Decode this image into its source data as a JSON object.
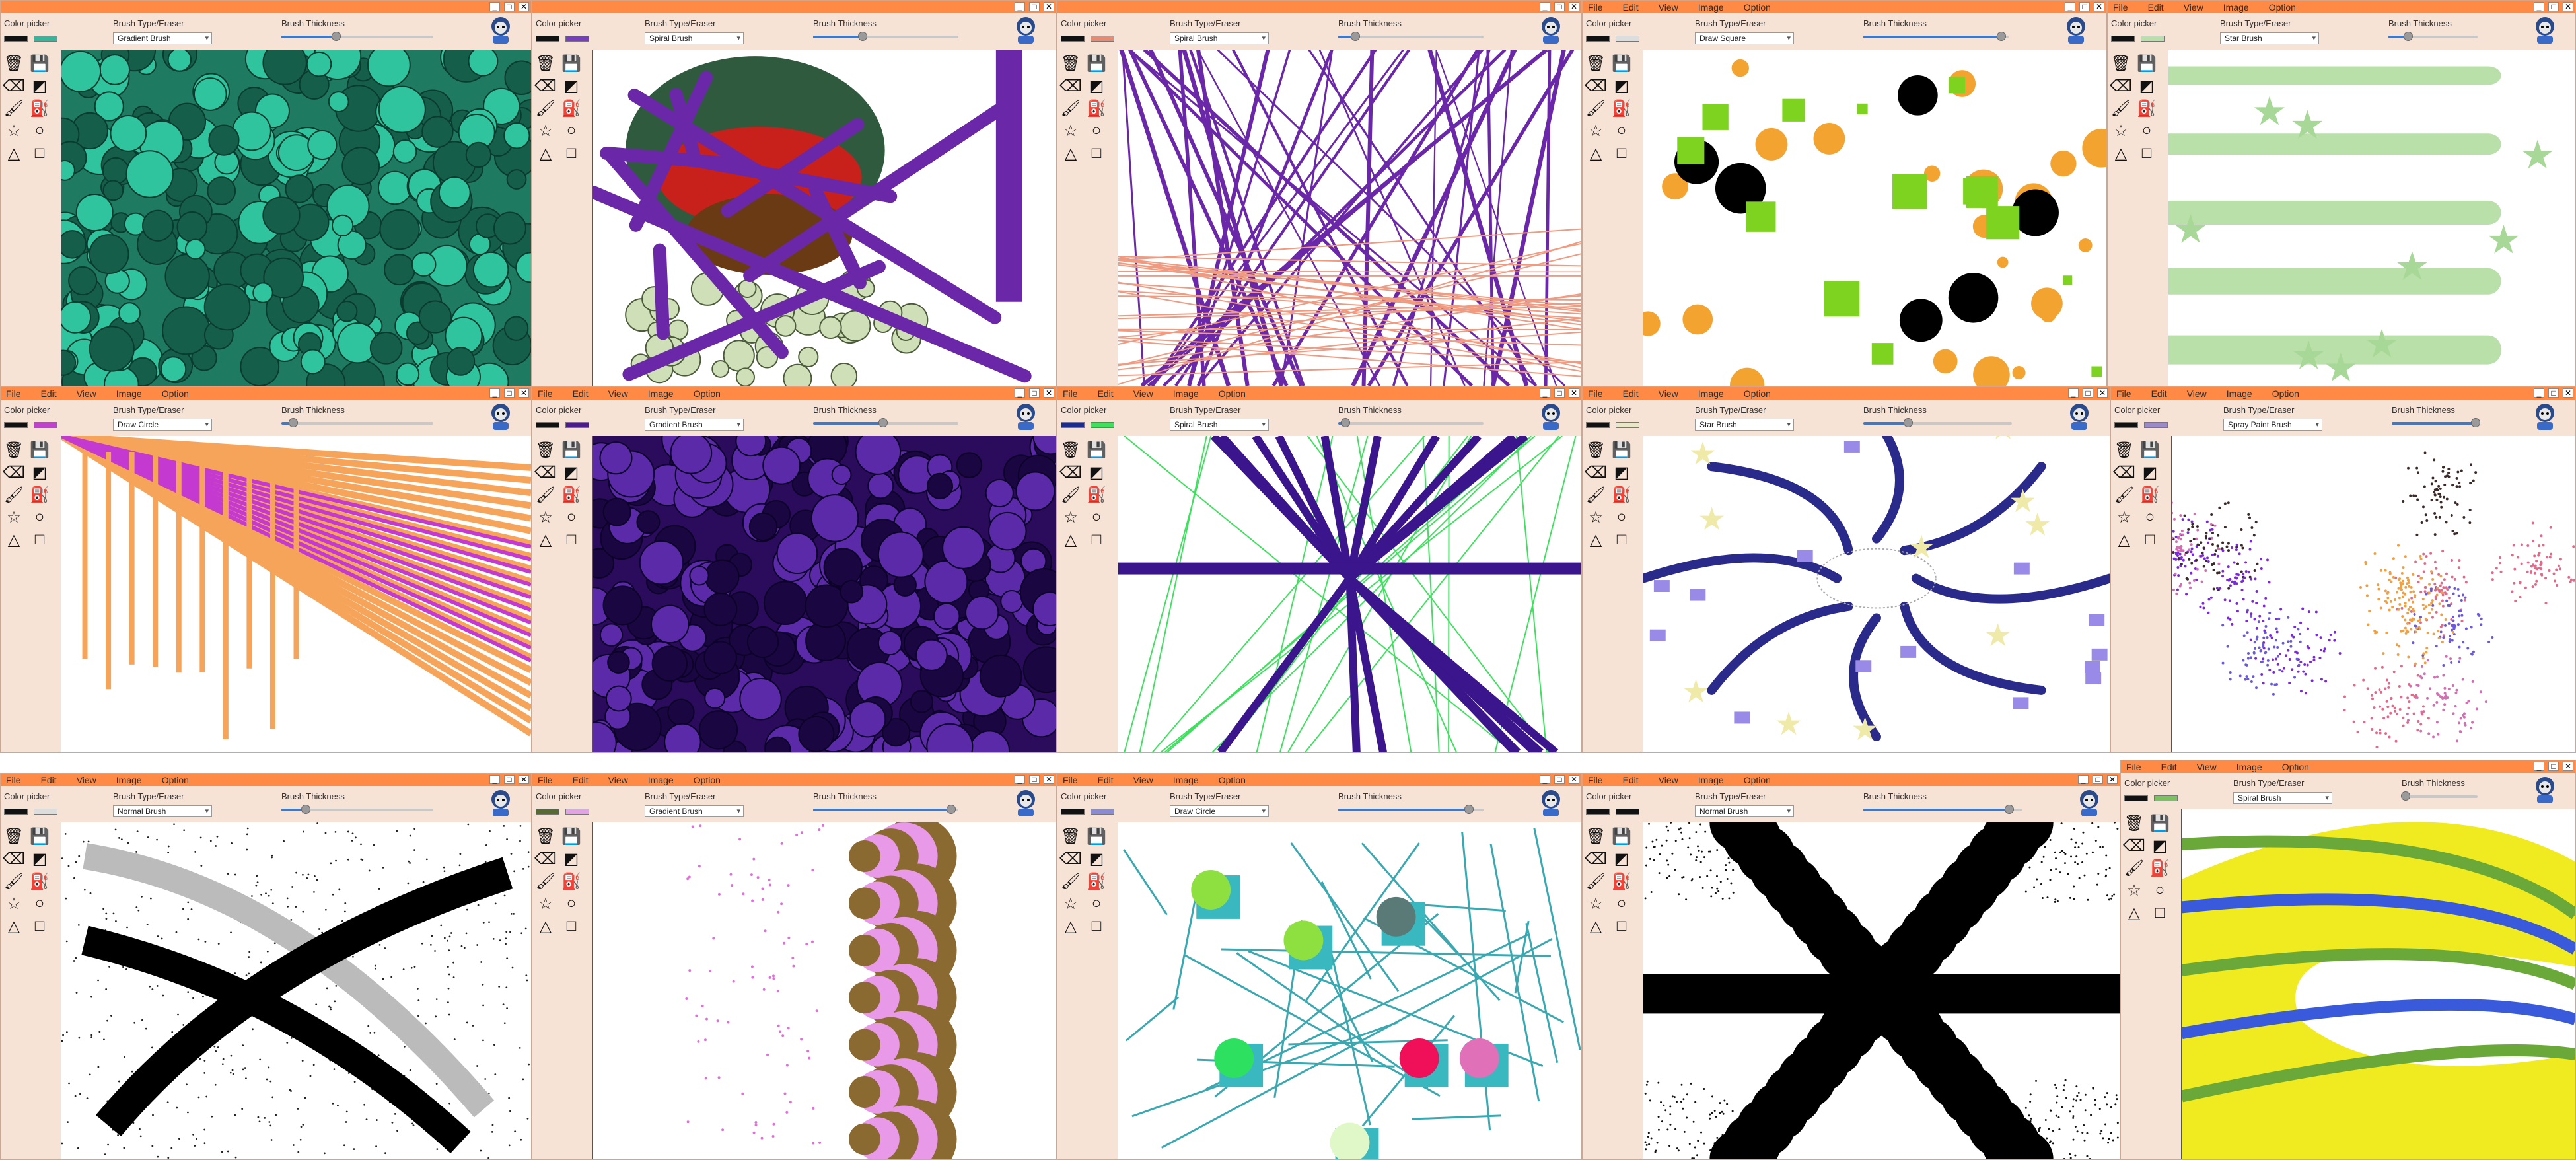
{
  "menu": [
    "File",
    "Edit",
    "View",
    "Image",
    "Option"
  ],
  "labels": {
    "color_picker": "Color picker",
    "brush_type": "Brush Type/Eraser",
    "brush_thickness": "Brush Thickness"
  },
  "window_buttons": [
    "_",
    "□",
    "✕"
  ],
  "tool_icons": [
    "trash-icon",
    "save-icon",
    "eraser-icon",
    "invert-icon",
    "brush-icon",
    "bucket-icon",
    "star-icon",
    "circle-icon",
    "triangle-icon",
    "square-icon"
  ],
  "windows": [
    {
      "id": "w1",
      "menu_visible": false,
      "brush": "Gradient Brush",
      "color1": "#111111",
      "color2": "#2fb89a",
      "thickness": 0.36,
      "scene": "green-swirls"
    },
    {
      "id": "w2",
      "menu_visible": false,
      "brush": "Spiral Brush",
      "color1": "#111111",
      "color2": "#7a3cc3",
      "thickness": 0.34,
      "scene": "spiral-head"
    },
    {
      "id": "w3",
      "menu_visible": false,
      "brush": "Spiral Brush",
      "color1": "#111111",
      "color2": "#e98a6e",
      "thickness": 0.12,
      "scene": "purple-lines"
    },
    {
      "id": "w4",
      "menu_visible": true,
      "brush": "Draw Square",
      "color1": "#111111",
      "color2": "#dddddd",
      "thickness": 0.95,
      "scene": "shapes-circles"
    },
    {
      "id": "w5",
      "menu_visible": true,
      "brush": "Star Brush",
      "color1": "#111111",
      "color2": "#b8e0a8",
      "thickness": 0.22,
      "scene": "green-stars"
    },
    {
      "id": "w6",
      "menu_visible": true,
      "brush": "Draw Circle",
      "color1": "#111111",
      "color2": "#c040d0",
      "thickness": 0.08,
      "scene": "fan-lines"
    },
    {
      "id": "w7",
      "menu_visible": true,
      "brush": "Gradient Brush",
      "color1": "#111111",
      "color2": "#4a1c8c",
      "thickness": 0.48,
      "scene": "purple-swirls"
    },
    {
      "id": "w8",
      "menu_visible": true,
      "brush": "Spiral Brush",
      "color1": "#1c2c8c",
      "color2": "#3ee05e",
      "thickness": 0.05,
      "scene": "star-burst"
    },
    {
      "id": "w9",
      "menu_visible": true,
      "brush": "Star Brush",
      "color1": "#111111",
      "color2": "#e8e8c8",
      "thickness": 0.3,
      "scene": "radial-arms"
    },
    {
      "id": "w10",
      "menu_visible": true,
      "brush": "Spray Paint Brush",
      "color1": "#111111",
      "color2": "#9a8ac8",
      "thickness": 0.98,
      "scene": "spray-dots"
    },
    {
      "id": "w11",
      "menu_visible": true,
      "brush": "Normal Brush",
      "color1": "#111111",
      "color2": "#dddddd",
      "thickness": 0.16,
      "scene": "black-x"
    },
    {
      "id": "w12",
      "menu_visible": true,
      "brush": "Gradient Brush",
      "color1": "#556b2f",
      "color2": "#e6a0e8",
      "thickness": 0.95,
      "scene": "pink-spirals"
    },
    {
      "id": "w13",
      "menu_visible": true,
      "brush": "Draw Circle",
      "color1": "#111111",
      "color2": "#8a8ad8",
      "thickness": 0.9,
      "scene": "teal-shapes"
    },
    {
      "id": "w14",
      "menu_visible": true,
      "brush": "Normal Brush",
      "color1": "#111111",
      "color2": "#111111",
      "thickness": 0.92,
      "scene": "black-cross"
    },
    {
      "id": "w15",
      "menu_visible": true,
      "brush": "Spiral Brush",
      "color1": "#111111",
      "color2": "#7ac35a",
      "thickness": 0.05,
      "scene": "yellow-blue"
    }
  ]
}
